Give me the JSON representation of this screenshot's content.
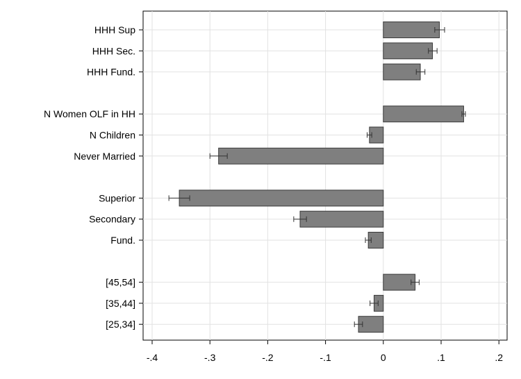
{
  "chart_data": {
    "type": "bar",
    "orientation": "horizontal",
    "xlim": [
      -0.4,
      0.2
    ],
    "xticks": [
      -0.4,
      -0.3,
      -0.2,
      -0.1,
      0,
      0.1,
      0.2
    ],
    "xtick_labels": [
      "-.4",
      "-.3",
      "-.2",
      "-.1",
      "0",
      ".1",
      ".2"
    ],
    "grid": "vertical",
    "legend": "none",
    "bar_color": "#7f7f7f",
    "bar_edge_color": "#3a3a3a",
    "grid_color": "#e2e2e2",
    "groups": [
      {
        "items": [
          {
            "label": "HHH Sup",
            "value": 0.097,
            "ci": [
              0.089,
              0.106
            ]
          },
          {
            "label": "HHH Sec.",
            "value": 0.085,
            "ci": [
              0.078,
              0.093
            ]
          },
          {
            "label": "HHH Fund.",
            "value": 0.064,
            "ci": [
              0.057,
              0.072
            ]
          }
        ]
      },
      {
        "items": [
          {
            "label": "N Women OLF in HH",
            "value": 0.139,
            "ci": [
              0.136,
              0.142
            ]
          },
          {
            "label": "N Children",
            "value": -0.024,
            "ci": [
              -0.028,
              -0.02
            ]
          },
          {
            "label": "Never Married",
            "value": -0.285,
            "ci": [
              -0.3,
              -0.27
            ]
          }
        ]
      },
      {
        "items": [
          {
            "label": "Superior",
            "value": -0.353,
            "ci": [
              -0.371,
              -0.335
            ]
          },
          {
            "label": "Secondary",
            "value": -0.144,
            "ci": [
              -0.155,
              -0.133
            ]
          },
          {
            "label": "Fund.",
            "value": -0.026,
            "ci": [
              -0.031,
              -0.021
            ]
          }
        ]
      },
      {
        "items": [
          {
            "label": "[45,54]",
            "value": 0.055,
            "ci": [
              0.048,
              0.062
            ]
          },
          {
            "label": "[35,44]",
            "value": -0.016,
            "ci": [
              -0.023,
              -0.009
            ]
          },
          {
            "label": "[25,34]",
            "value": -0.043,
            "ci": [
              -0.05,
              -0.036
            ]
          }
        ]
      }
    ]
  }
}
